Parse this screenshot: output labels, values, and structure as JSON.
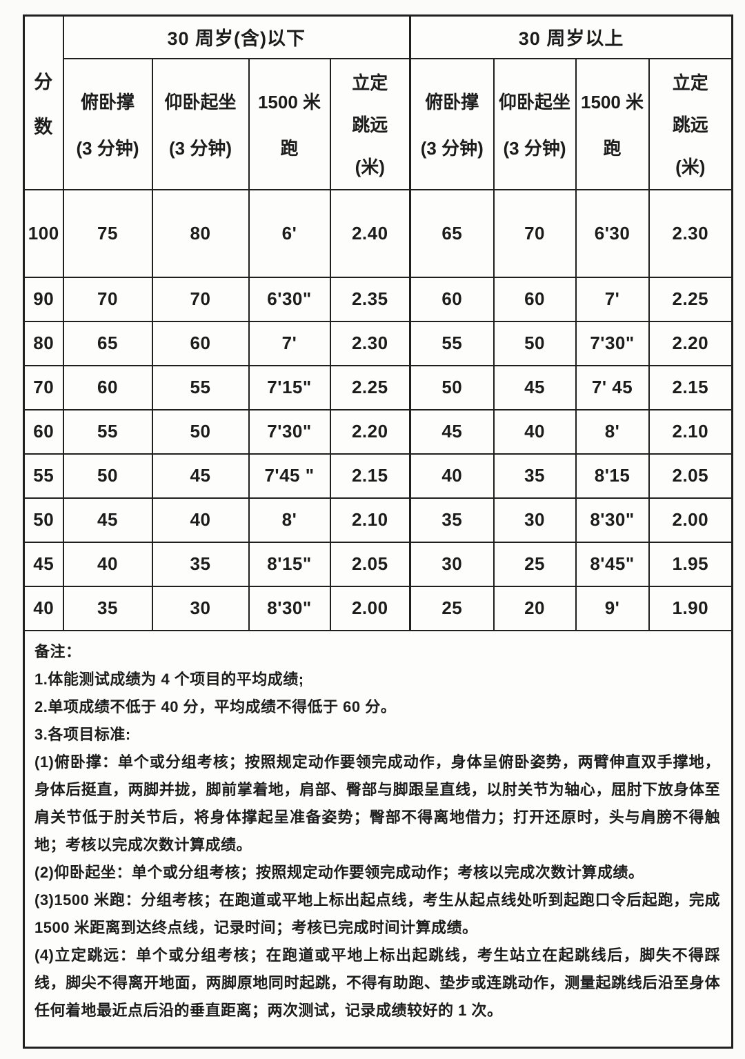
{
  "page": {
    "background": "#fbfbfa",
    "text_color": "#1c1c1c",
    "border_color": "#1f1f1f"
  },
  "table": {
    "score_header_chars": [
      "分",
      "数"
    ],
    "age_groups": [
      {
        "label": "30 周岁(含)以下",
        "columns": [
          {
            "lines": [
              "俯卧撑",
              "(3 分钟)"
            ]
          },
          {
            "lines": [
              "仰卧起坐",
              "(3 分钟)"
            ]
          },
          {
            "lines": [
              "1500 米",
              "跑"
            ]
          },
          {
            "lines": [
              "立定",
              "跳远",
              "(米)"
            ]
          }
        ]
      },
      {
        "label": "30 周岁以上",
        "columns": [
          {
            "lines": [
              "俯卧撑",
              "(3 分钟)"
            ]
          },
          {
            "lines": [
              "仰卧起坐",
              "(3 分钟)"
            ]
          },
          {
            "lines": [
              "1500 米",
              "跑"
            ]
          },
          {
            "lines": [
              "立定",
              "跳远",
              "(米)"
            ]
          }
        ]
      }
    ],
    "rows": [
      {
        "score": "100",
        "cells": [
          "75",
          "80",
          "6'",
          "2.40",
          "65",
          "70",
          "6'30",
          "2.30"
        ]
      },
      {
        "score": "90",
        "cells": [
          "70",
          "70",
          "6'30\"",
          "2.35",
          "60",
          "60",
          "7'",
          "2.25"
        ]
      },
      {
        "score": "80",
        "cells": [
          "65",
          "60",
          "7'",
          "2.30",
          "55",
          "50",
          "7'30\"",
          "2.20"
        ]
      },
      {
        "score": "70",
        "cells": [
          "60",
          "55",
          "7'15\"",
          "2.25",
          "50",
          "45",
          "7' 45",
          "2.15"
        ]
      },
      {
        "score": "60",
        "cells": [
          "55",
          "50",
          "7'30\"",
          "2.20",
          "45",
          "40",
          "8'",
          "2.10"
        ]
      },
      {
        "score": "55",
        "cells": [
          "50",
          "45",
          "7'45 \"",
          "2.15",
          "40",
          "35",
          "8'15",
          "2.05"
        ]
      },
      {
        "score": "50",
        "cells": [
          "45",
          "40",
          "8'",
          "2.10",
          "35",
          "30",
          "8'30\"",
          "2.00"
        ]
      },
      {
        "score": "45",
        "cells": [
          "40",
          "35",
          "8'15\"",
          "2.05",
          "30",
          "25",
          "8'45\"",
          "1.95"
        ]
      },
      {
        "score": "40",
        "cells": [
          "35",
          "30",
          "8'30\"",
          "2.00",
          "25",
          "20",
          "9'",
          "1.90"
        ]
      }
    ]
  },
  "notes": {
    "title": "备注：",
    "items": [
      "1.体能测试成绩为 4 个项目的平均成绩;",
      "2.单项成绩不低于 40 分，平均成绩不得低于 60 分。",
      "3.各项目标准:",
      "(1)俯卧撑：单个或分组考核；按照规定动作要领完成动作，身体呈俯卧姿势，两臂伸直双手撑地，身体后挺直，两脚并拢，脚前掌着地，肩部、臀部与脚跟呈直线，以肘关节为轴心，屈肘下放身体至肩关节低于肘关节后，将身体撑起呈准备姿势；臀部不得离地借力；打开还原时，头与肩膀不得触地；考核以完成次数计算成绩。",
      "(2)仰卧起坐：单个或分组考核；按照规定动作要领完成动作；考核以完成次数计算成绩。",
      "(3)1500 米跑：分组考核；在跑道或平地上标出起点线，考生从起点线处听到起跑口令后起跑，完成 1500 米距离到达终点线，记录时间；考核已完成时间计算成绩。",
      "(4)立定跳远：单个或分组考核；在跑道或平地上标出起跳线，考生站立在起跳线后，脚失不得踩线，脚尖不得离开地面，两脚原地同时起跳，不得有助跑、垫步或连跳动作，测量起跳线后沿至身体任何着地最近点后沿的垂直距离；两次测试，记录成绩较好的 1 次。"
    ]
  }
}
